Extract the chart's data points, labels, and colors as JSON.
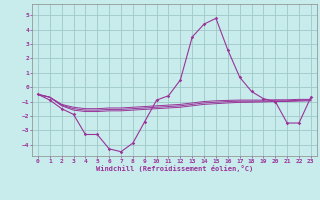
{
  "xlabel": "Windchill (Refroidissement éolien,°C)",
  "xlim": [
    -0.5,
    23.5
  ],
  "ylim": [
    -4.8,
    5.8
  ],
  "yticks": [
    -4,
    -3,
    -2,
    -1,
    0,
    1,
    2,
    3,
    4,
    5
  ],
  "xticks": [
    0,
    1,
    2,
    3,
    4,
    5,
    6,
    7,
    8,
    9,
    10,
    11,
    12,
    13,
    14,
    15,
    16,
    17,
    18,
    19,
    20,
    21,
    22,
    23
  ],
  "background_color": "#c8ecec",
  "grid_color": "#a0c8c8",
  "line_color": "#993399",
  "series_main": {
    "x": [
      0,
      1,
      2,
      3,
      4,
      5,
      6,
      7,
      8,
      9,
      10,
      11,
      12,
      13,
      14,
      15,
      16,
      17,
      18,
      19,
      20,
      21,
      22,
      23
    ],
    "y": [
      -0.5,
      -0.9,
      -1.5,
      -1.9,
      -3.3,
      -3.3,
      -4.3,
      -4.5,
      -3.9,
      -2.4,
      -0.9,
      -0.6,
      0.5,
      3.5,
      4.4,
      4.8,
      2.6,
      0.7,
      -0.3,
      -0.8,
      -1.0,
      -2.5,
      -2.5,
      -0.7
    ]
  },
  "series_flat": [
    {
      "x": [
        0,
        1,
        2,
        3,
        4,
        5,
        6,
        7,
        8,
        9,
        10,
        11,
        12,
        13,
        14,
        15,
        16,
        17,
        18,
        19,
        20,
        21,
        22,
        23
      ],
      "y": [
        -0.5,
        -0.7,
        -1.2,
        -1.4,
        -1.5,
        -1.5,
        -1.45,
        -1.45,
        -1.4,
        -1.35,
        -1.3,
        -1.25,
        -1.2,
        -1.1,
        -1.0,
        -0.95,
        -0.92,
        -0.9,
        -0.9,
        -0.9,
        -0.88,
        -0.88,
        -0.85,
        -0.85
      ]
    },
    {
      "x": [
        0,
        1,
        2,
        3,
        4,
        5,
        6,
        7,
        8,
        9,
        10,
        11,
        12,
        13,
        14,
        15,
        16,
        17,
        18,
        19,
        20,
        21,
        22,
        23
      ],
      "y": [
        -0.5,
        -0.7,
        -1.25,
        -1.5,
        -1.6,
        -1.6,
        -1.55,
        -1.55,
        -1.5,
        -1.45,
        -1.4,
        -1.35,
        -1.3,
        -1.2,
        -1.1,
        -1.05,
        -1.0,
        -0.98,
        -0.98,
        -0.97,
        -0.95,
        -0.95,
        -0.92,
        -0.9
      ]
    },
    {
      "x": [
        0,
        1,
        2,
        3,
        4,
        5,
        6,
        7,
        8,
        9,
        10,
        11,
        12,
        13,
        14,
        15,
        16,
        17,
        18,
        19,
        20,
        21,
        22,
        23
      ],
      "y": [
        -0.5,
        -0.7,
        -1.3,
        -1.6,
        -1.7,
        -1.7,
        -1.65,
        -1.65,
        -1.6,
        -1.55,
        -1.5,
        -1.45,
        -1.4,
        -1.3,
        -1.2,
        -1.15,
        -1.1,
        -1.06,
        -1.05,
        -1.03,
        -1.0,
        -1.0,
        -0.97,
        -0.95
      ]
    }
  ]
}
